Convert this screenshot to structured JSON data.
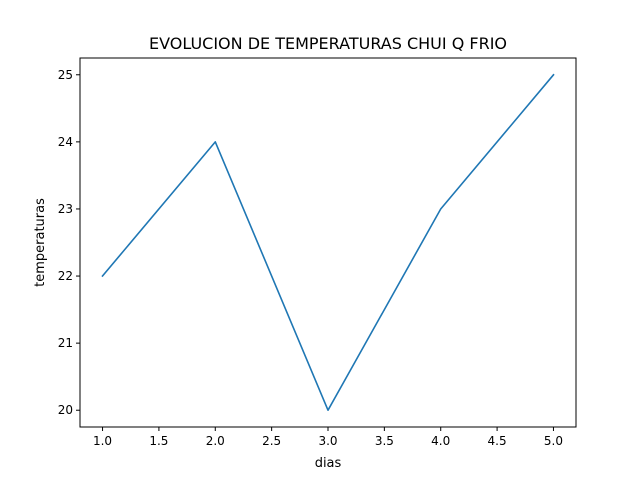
{
  "chart_data": {
    "type": "line",
    "title": "EVOLUCION DE TEMPERATURAS CHUI Q FRIO",
    "xlabel": "dias",
    "ylabel": "temperaturas",
    "x": [
      1,
      2,
      3,
      4,
      5
    ],
    "series": [
      {
        "values": [
          22,
          24,
          20,
          23,
          25
        ],
        "color": "#1f77b4"
      }
    ],
    "xlim": [
      0.8,
      5.2
    ],
    "ylim": [
      19.75,
      25.25
    ],
    "xticks": [
      1.0,
      1.5,
      2.0,
      2.5,
      3.0,
      3.5,
      4.0,
      4.5,
      5.0
    ],
    "xtick_labels": [
      "1.0",
      "1.5",
      "2.0",
      "2.5",
      "3.0",
      "3.5",
      "4.0",
      "4.5",
      "5.0"
    ],
    "yticks": [
      20,
      21,
      22,
      23,
      24,
      25
    ],
    "ytick_labels": [
      "20",
      "21",
      "22",
      "23",
      "24",
      "25"
    ],
    "grid": false,
    "legend": false
  }
}
